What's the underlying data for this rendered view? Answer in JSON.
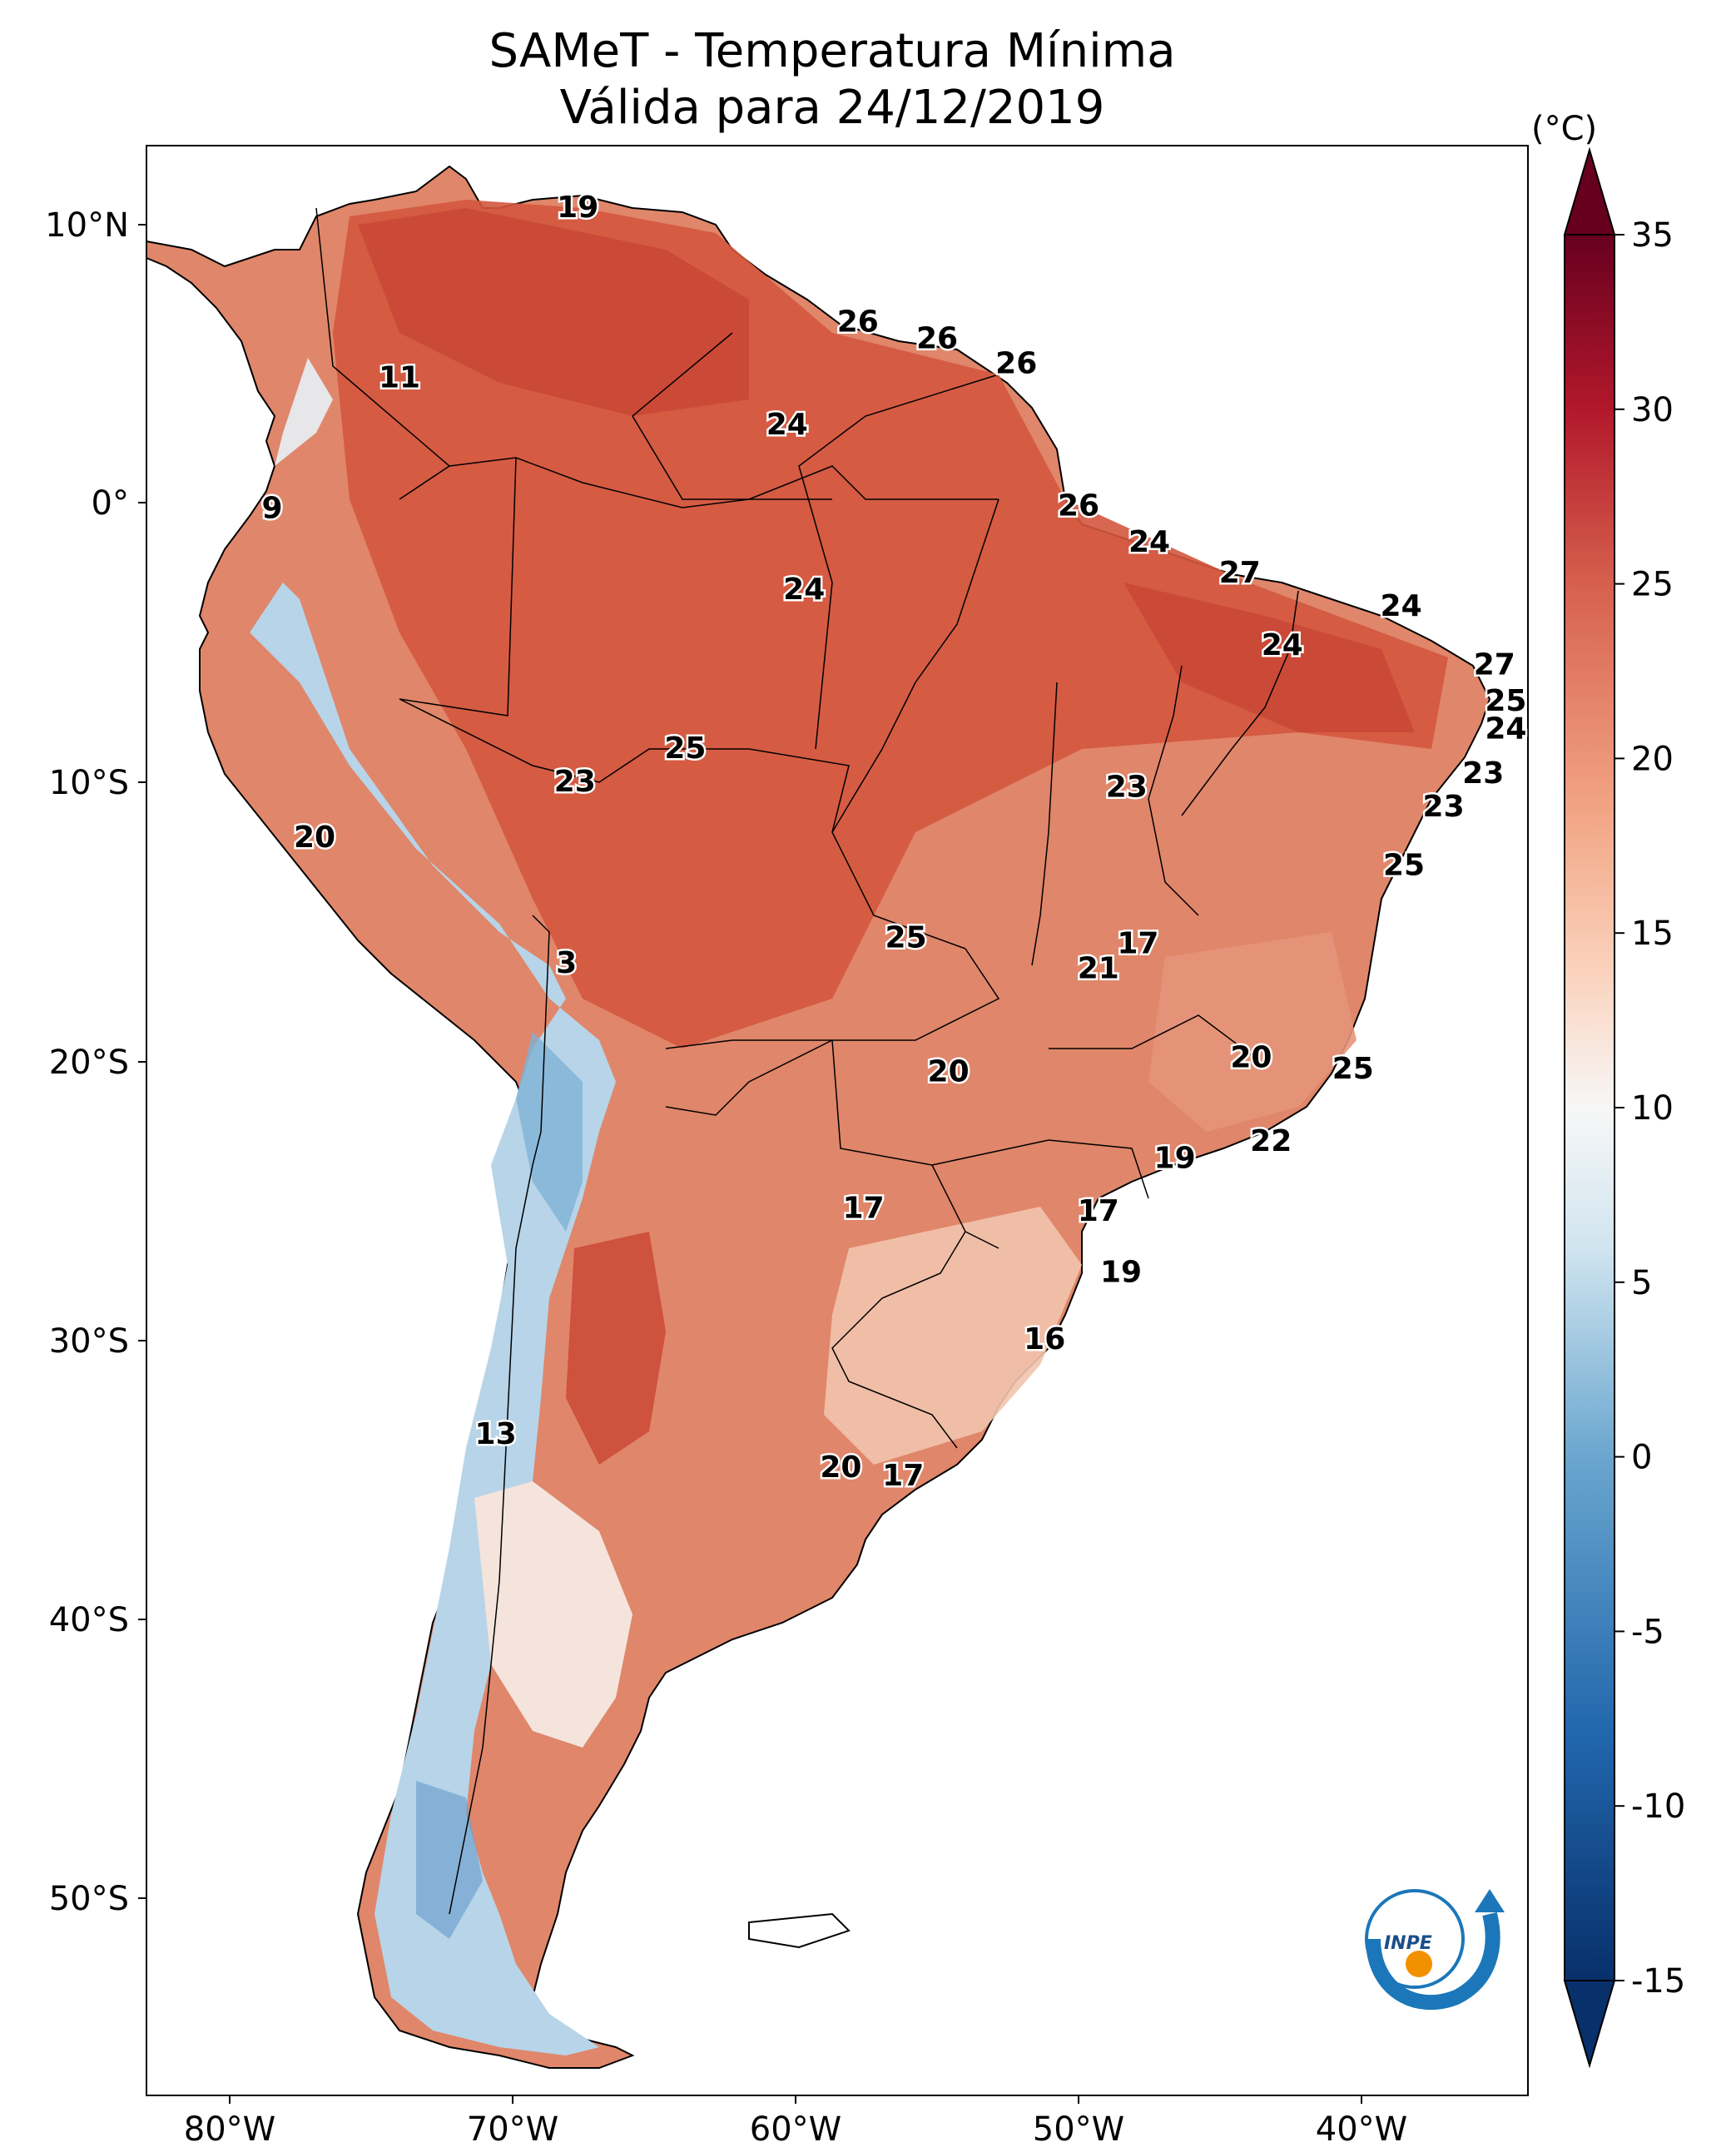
{
  "title": "SAMeT - Temperatura Mínima",
  "subtitle": "Válida para 24/12/2019",
  "colorbar": {
    "unit": "(°C)",
    "ticks": [
      "35",
      "30",
      "25",
      "20",
      "15",
      "10",
      "5",
      "0",
      "-5",
      "-10",
      "-15"
    ],
    "range": [
      -15,
      35
    ],
    "colors": {
      "cold": "#08306b",
      "mid": "#f7f7f7",
      "hot": "#67001f"
    }
  },
  "axes": {
    "lon_ticks": [
      "80°W",
      "70°W",
      "60°W",
      "50°W",
      "40°W"
    ],
    "lat_ticks": [
      "10°N",
      "0°",
      "10°S",
      "20°S",
      "30°S",
      "40°S",
      "50°S"
    ]
  },
  "logo": {
    "text": "INPE",
    "icon": "inpe-logo"
  },
  "point_labels": [
    {
      "lon": -67.7,
      "lat": 10.6,
      "value": "19"
    },
    {
      "lon": -57.8,
      "lat": 6.5,
      "value": "26"
    },
    {
      "lon": -55.0,
      "lat": 5.9,
      "value": "26"
    },
    {
      "lon": -52.2,
      "lat": 5.0,
      "value": "26"
    },
    {
      "lon": -60.3,
      "lat": 2.8,
      "value": "24"
    },
    {
      "lon": -74.0,
      "lat": 4.5,
      "value": "11"
    },
    {
      "lon": -78.5,
      "lat": -0.2,
      "value": "9"
    },
    {
      "lon": -50.0,
      "lat": -0.1,
      "value": "26"
    },
    {
      "lon": -47.5,
      "lat": -1.4,
      "value": "24"
    },
    {
      "lon": -59.7,
      "lat": -3.1,
      "value": "24"
    },
    {
      "lon": -44.3,
      "lat": -2.5,
      "value": "27"
    },
    {
      "lon": -38.6,
      "lat": -3.7,
      "value": "24"
    },
    {
      "lon": -42.8,
      "lat": -5.1,
      "value": "24"
    },
    {
      "lon": -35.3,
      "lat": -5.8,
      "value": "27"
    },
    {
      "lon": -34.9,
      "lat": -7.1,
      "value": "25"
    },
    {
      "lon": -34.9,
      "lat": -8.1,
      "value": "24"
    },
    {
      "lon": -63.9,
      "lat": -8.8,
      "value": "25"
    },
    {
      "lon": -67.8,
      "lat": -10.0,
      "value": "23"
    },
    {
      "lon": -48.3,
      "lat": -10.2,
      "value": "23"
    },
    {
      "lon": -35.7,
      "lat": -9.7,
      "value": "23"
    },
    {
      "lon": -37.1,
      "lat": -10.9,
      "value": "23"
    },
    {
      "lon": -38.5,
      "lat": -13.0,
      "value": "25"
    },
    {
      "lon": -77.0,
      "lat": -12.0,
      "value": "20"
    },
    {
      "lon": -56.1,
      "lat": -15.6,
      "value": "25"
    },
    {
      "lon": -47.9,
      "lat": -15.8,
      "value": "17"
    },
    {
      "lon": -49.3,
      "lat": -16.7,
      "value": "21"
    },
    {
      "lon": -68.1,
      "lat": -16.5,
      "value": "3"
    },
    {
      "lon": -54.6,
      "lat": -20.4,
      "value": "20"
    },
    {
      "lon": -43.9,
      "lat": -19.9,
      "value": "20"
    },
    {
      "lon": -40.3,
      "lat": -20.3,
      "value": "25"
    },
    {
      "lon": -43.2,
      "lat": -22.9,
      "value": "22"
    },
    {
      "lon": -46.6,
      "lat": -23.5,
      "value": "19"
    },
    {
      "lon": -57.6,
      "lat": -25.3,
      "value": "17"
    },
    {
      "lon": -49.3,
      "lat": -25.4,
      "value": "17"
    },
    {
      "lon": -48.5,
      "lat": -27.6,
      "value": "19"
    },
    {
      "lon": -51.2,
      "lat": -30.0,
      "value": "16"
    },
    {
      "lon": -70.6,
      "lat": -33.4,
      "value": "13"
    },
    {
      "lon": -58.4,
      "lat": -34.6,
      "value": "20"
    },
    {
      "lon": -56.2,
      "lat": -34.9,
      "value": "17"
    }
  ]
}
